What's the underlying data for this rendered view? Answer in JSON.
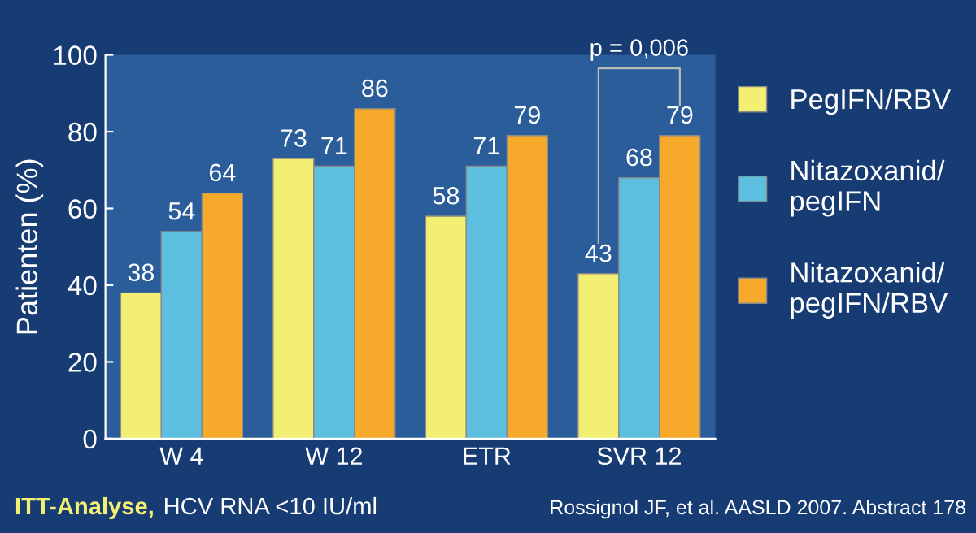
{
  "chart_data": {
    "type": "bar",
    "ylabel": "Patienten (%)",
    "categories": [
      "W 4",
      "W 12",
      "ETR",
      "SVR 12"
    ],
    "series": [
      {
        "name": "PegIFN/RBV",
        "color": "#f2ef72",
        "values": [
          38,
          73,
          58,
          43
        ]
      },
      {
        "name": "Nitazoxanid/\npegIFN",
        "color": "#5cbfdf",
        "values": [
          54,
          71,
          71,
          68
        ]
      },
      {
        "name": "Nitazoxanid/\npegIFN/RBV",
        "color": "#f7a92c",
        "values": [
          64,
          86,
          79,
          79
        ]
      }
    ],
    "ylim": [
      0,
      100
    ],
    "yticks": [
      0,
      20,
      40,
      60,
      80,
      100
    ],
    "grid": false,
    "legend": "right",
    "data_labels": true,
    "annotations": [
      "p = 0,006",
      "ITT-Analyse,",
      "HCV RNA <10 IU/ml",
      "Rossignol JF, et al. AASLD 2007. Abstract 178"
    ]
  }
}
